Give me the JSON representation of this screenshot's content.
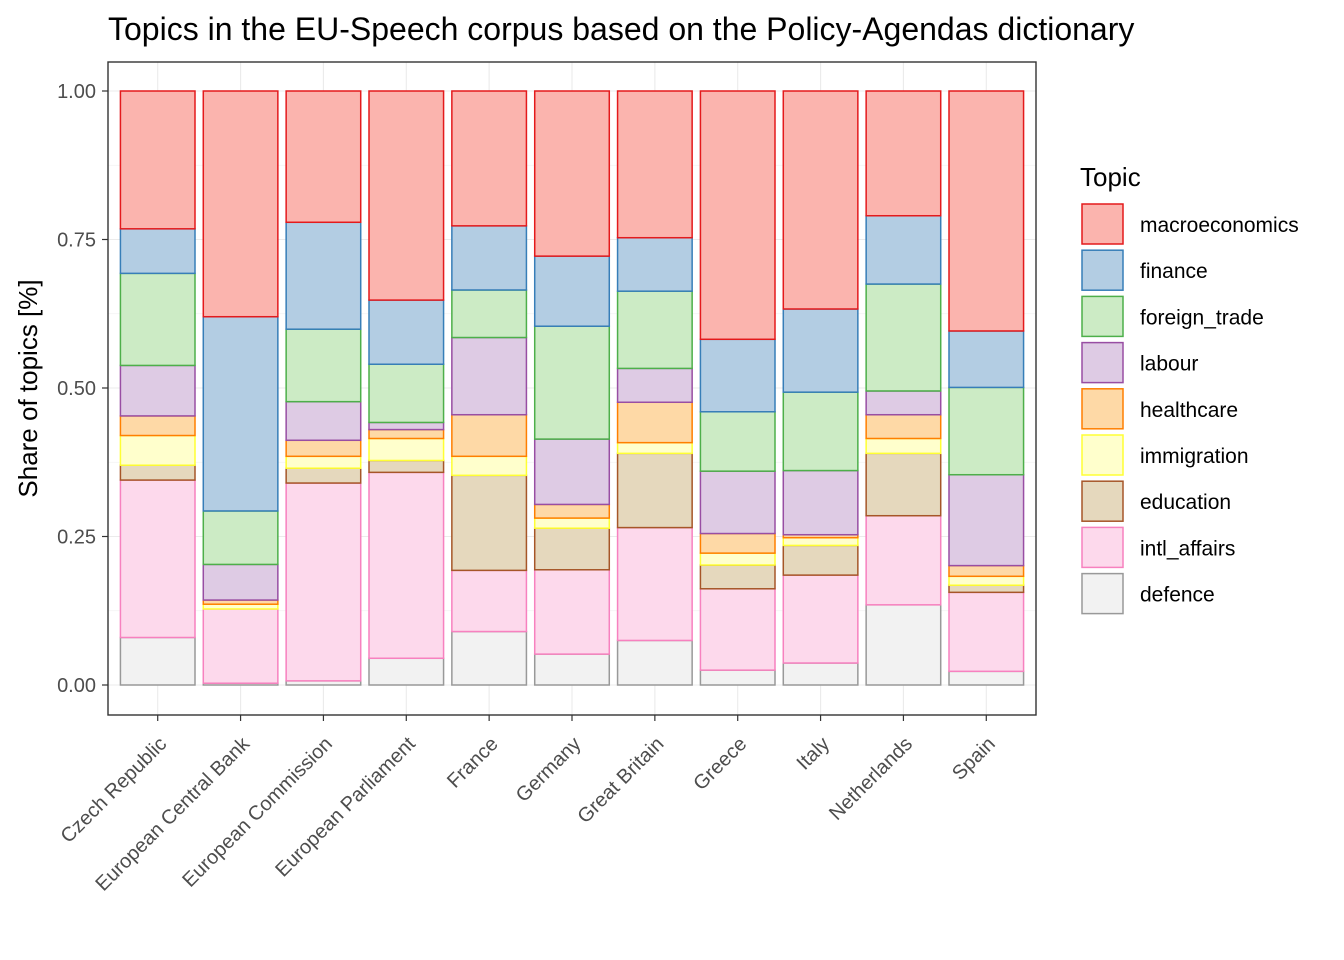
{
  "chart_data": {
    "type": "bar",
    "stacked": true,
    "title": "Topics in the EU-Speech corpus based on the Policy-Agendas dictionary",
    "xlabel": "",
    "ylabel": "Share of topics [%]",
    "ylim": [
      0,
      1
    ],
    "yticks": [
      "0.00",
      "0.25",
      "0.50",
      "0.75",
      "1.00"
    ],
    "ytick_values": [
      0,
      0.25,
      0.5,
      0.75,
      1.0
    ],
    "grid": true,
    "legend": {
      "title": "Topic",
      "position": "right"
    },
    "categories": [
      "Czech Republic",
      "European Central Bank",
      "European Commission",
      "European Parliament",
      "France",
      "Germany",
      "Great Britain",
      "Greece",
      "Italy",
      "Netherlands",
      "Spain"
    ],
    "series": [
      {
        "name": "defence",
        "fill": "#f2f2f2",
        "stroke": "#999999",
        "values": [
          0.08,
          0.003,
          0.007,
          0.045,
          0.09,
          0.052,
          0.075,
          0.025,
          0.037,
          0.135,
          0.023
        ]
      },
      {
        "name": "intl_affairs",
        "fill": "#fdd9ec",
        "stroke": "#f781bf",
        "values": [
          0.265,
          0.125,
          0.333,
          0.313,
          0.103,
          0.142,
          0.19,
          0.137,
          0.148,
          0.15,
          0.133
        ]
      },
      {
        "name": "education",
        "fill": "#e5d8bd",
        "stroke": "#a65628",
        "values": [
          0.025,
          0.0,
          0.025,
          0.02,
          0.16,
          0.07,
          0.125,
          0.04,
          0.05,
          0.105,
          0.012
        ]
      },
      {
        "name": "immigration",
        "fill": "#ffffcc",
        "stroke": "#ffff33",
        "values": [
          0.05,
          0.008,
          0.02,
          0.037,
          0.032,
          0.017,
          0.018,
          0.02,
          0.013,
          0.025,
          0.015
        ]
      },
      {
        "name": "healthcare",
        "fill": "#fed9a6",
        "stroke": "#ff7f00",
        "values": [
          0.033,
          0.007,
          0.027,
          0.015,
          0.07,
          0.023,
          0.068,
          0.033,
          0.005,
          0.04,
          0.018
        ]
      },
      {
        "name": "labour",
        "fill": "#decbe4",
        "stroke": "#984ea3",
        "values": [
          0.085,
          0.06,
          0.065,
          0.012,
          0.13,
          0.11,
          0.057,
          0.105,
          0.108,
          0.04,
          0.153
        ]
      },
      {
        "name": "foreign_trade",
        "fill": "#ccebc5",
        "stroke": "#4daf4a",
        "values": [
          0.155,
          0.09,
          0.122,
          0.098,
          0.08,
          0.19,
          0.13,
          0.1,
          0.132,
          0.18,
          0.147
        ]
      },
      {
        "name": "finance",
        "fill": "#b3cde3",
        "stroke": "#377eb8",
        "values": [
          0.075,
          0.327,
          0.18,
          0.108,
          0.108,
          0.118,
          0.09,
          0.122,
          0.14,
          0.115,
          0.095
        ]
      },
      {
        "name": "macroeconomics",
        "fill": "#fbb4ae",
        "stroke": "#e41a1c",
        "values": [
          0.232,
          0.38,
          0.221,
          0.352,
          0.227,
          0.278,
          0.247,
          0.418,
          0.367,
          0.21,
          0.404
        ]
      }
    ]
  }
}
